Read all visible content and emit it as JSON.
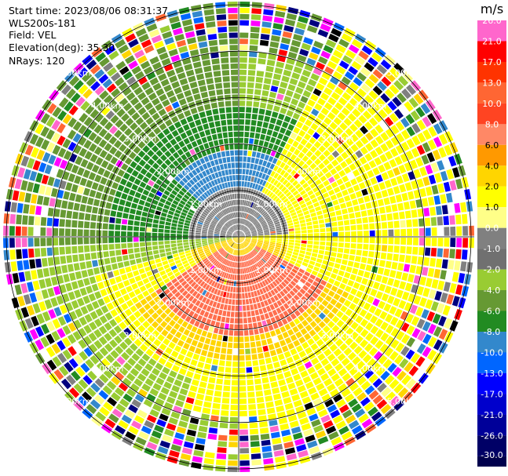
{
  "header": {
    "start_time": "Start time: 2023/08/06 08:31:37",
    "instrument": "WLS200s-181",
    "field": "Field: VEL",
    "elevation": "Elevation(deg): 35.30",
    "nrays": "NRays: 120"
  },
  "chart_data": {
    "type": "polar-ppi",
    "range_rings_km": [
      1.0,
      2.0,
      3.0,
      4.0,
      5.0
    ],
    "range_ring_labels": [
      "1.00km",
      "2.00km",
      "3.00km",
      "4.00km",
      "5.00km"
    ],
    "num_rays": 120,
    "colorbar": {
      "unit": "m/s",
      "tick_labels": [
        "26.0",
        "21.0",
        "17.0",
        "13.0",
        "10.0",
        "8.0",
        "6.0",
        "4.0",
        "2.0",
        "1.0",
        "0.0",
        "-1.0",
        "-2.0",
        "-4.0",
        "-6.0",
        "-8.0",
        "-10.0",
        "-13.0",
        "-17.0",
        "-21.0",
        "-26.0",
        "-30.0"
      ],
      "colors": [
        "#ff66cc",
        "#ff0000",
        "#ff3300",
        "#ff6633",
        "#ff4422",
        "#ff8866",
        "#ff9900",
        "#ffd500",
        "#ffff00",
        "#ffff88",
        "#808080",
        "#707070",
        "#99cc33",
        "#669933",
        "#228B22",
        "#3388cc",
        "#0066ff",
        "#0000ff",
        "#0000cc",
        "#000099",
        "#000066",
        "#00004d"
      ]
    }
  }
}
